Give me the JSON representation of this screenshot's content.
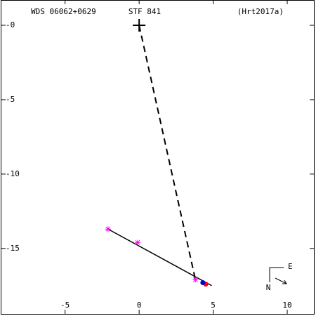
{
  "chart_data": {
    "type": "scatter",
    "title": "STF 841",
    "left_label": "WDS 06062+0629",
    "right_label": "(Hrt2017a)",
    "compass": {
      "east": "E",
      "north": "N"
    },
    "xlim": [
      -9.3,
      11.8
    ],
    "ylim": [
      -19.4,
      1.7
    ],
    "xticks": [
      -5,
      0,
      5,
      10
    ],
    "yticks": [
      {
        "value": 0,
        "label": "-0"
      },
      -5,
      -10,
      -15
    ],
    "primary": {
      "x": 0,
      "y": 0
    },
    "series": [
      {
        "marker": "asterisk",
        "color": "#ff00ff",
        "x": [
          -2.1,
          -0.1,
          3.8
        ],
        "values": [
          -13.7,
          -14.6,
          -17.1
        ]
      },
      {
        "marker": "dot",
        "color": "#ff0000",
        "x": [
          4.5
        ],
        "values": [
          -17.4
        ]
      },
      {
        "marker": "dot",
        "color": "#0000cc",
        "x": [
          4.3
        ],
        "values": [
          -17.3
        ]
      }
    ],
    "lines": [
      {
        "style": "solid",
        "x": [
          -2.1,
          4.9
        ],
        "values": [
          -13.7,
          -17.5
        ]
      },
      {
        "style": "dashed",
        "x": [
          0,
          3.8
        ],
        "values": [
          0,
          -17.1
        ]
      }
    ]
  }
}
